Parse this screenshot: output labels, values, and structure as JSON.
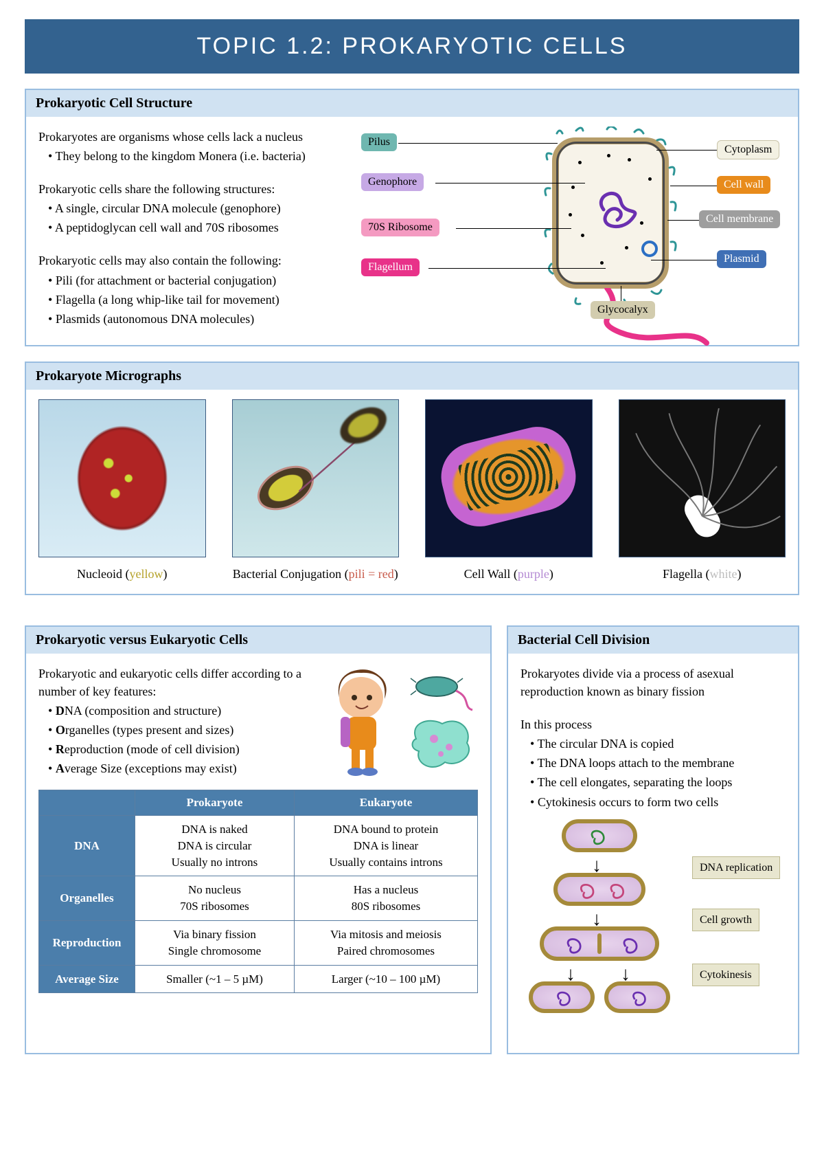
{
  "page_title": "TOPIC 1.2:  PROKARYOTIC CELLS",
  "section1": {
    "heading": "Prokaryotic Cell Structure",
    "intro": "Prokaryotes are organisms whose cells lack a nucleus",
    "intro_items": [
      "They belong to the kingdom Monera (i.e. bacteria)"
    ],
    "share_lead": "Prokaryotic cells share the following structures:",
    "share_items": [
      "A single, circular DNA molecule (genophore)",
      "A peptidoglycan cell wall and 70S ribosomes"
    ],
    "may_lead": "Prokaryotic cells may also contain the following:",
    "may_items": [
      "Pili  (for attachment or bacterial conjugation)",
      "Flagella  (a long whip-like tail for movement)",
      "Plasmids  (autonomous DNA molecules)"
    ],
    "labels": {
      "pilus": {
        "text": "Pilus",
        "bg": "#6fb7b0",
        "fg": "#000"
      },
      "genophore": {
        "text": "Genophore",
        "bg": "#c6a9e5",
        "fg": "#000"
      },
      "ribosome": {
        "text": "70S Ribosome",
        "bg": "#f49ac1",
        "fg": "#000"
      },
      "flagellum": {
        "text": "Flagellum",
        "bg": "#e83289",
        "fg": "#fff"
      },
      "cytoplasm": {
        "text": "Cytoplasm",
        "bg": "#f3f1e3",
        "fg": "#000"
      },
      "cellwall": {
        "text": "Cell wall",
        "bg": "#e88b1b",
        "fg": "#fff"
      },
      "membrane": {
        "text": "Cell membrane",
        "bg": "#9e9e9e",
        "fg": "#fff"
      },
      "plasmid": {
        "text": "Plasmid",
        "bg": "#3f6fb5",
        "fg": "#fff"
      },
      "glycocalyx": {
        "text": "Glycocalyx",
        "bg": "#d2ccae",
        "fg": "#000"
      }
    }
  },
  "section2": {
    "heading": "Prokaryote Micrographs",
    "caps": [
      {
        "pre": "Nucleoid (",
        "word": "yellow",
        "post": ")",
        "color": "#b5a22a"
      },
      {
        "pre": "Bacterial Conjugation (",
        "word": "pili = red",
        "post": ")",
        "color": "#c85a4a"
      },
      {
        "pre": "Cell Wall (",
        "word": "purple",
        "post": ")",
        "color": "#b48ad3"
      },
      {
        "pre": "Flagella (",
        "word": "white",
        "post": ")",
        "color": "#bcbcbc"
      }
    ]
  },
  "section3": {
    "heading": "Prokaryotic versus Eukaryotic Cells",
    "lead": "Prokaryotic and eukaryotic cells differ according to a number of key features:",
    "items": [
      {
        "b": "D",
        "rest": "NA  (composition and structure)"
      },
      {
        "b": "O",
        "rest": "rganelles  (types present and sizes)"
      },
      {
        "b": "R",
        "rest": "eproduction  (mode of cell division)"
      },
      {
        "b": "A",
        "rest": "verage Size  (exceptions may exist)"
      }
    ],
    "table": {
      "cols": [
        "",
        "Prokaryote",
        "Eukaryote"
      ],
      "rows": [
        {
          "h": "DNA",
          "p": "DNA is naked\nDNA is circular\nUsually no introns",
          "e": "DNA bound to protein\nDNA is linear\nUsually contains introns"
        },
        {
          "h": "Organelles",
          "p": "No nucleus\n70S ribosomes",
          "e": "Has a nucleus\n80S ribosomes"
        },
        {
          "h": "Reproduction",
          "p": "Via binary fission\nSingle chromosome",
          "e": "Via mitosis and meiosis\nPaired chromosomes"
        },
        {
          "h": "Average Size",
          "p": "Smaller (~1 – 5 µM)",
          "e": "Larger (~10 – 100 µM)"
        }
      ]
    }
  },
  "section4": {
    "heading": "Bacterial Cell Division",
    "lead": "Prokaryotes divide via a process of asexual reproduction known as binary fission",
    "sub": "In this process",
    "items": [
      "The circular DNA is copied",
      "The DNA loops attach to the membrane",
      "The cell elongates, separating the loops",
      "Cytokinesis occurs to form two cells"
    ],
    "stages": [
      "DNA replication",
      "Cell growth",
      "Cytokinesis"
    ]
  },
  "colors": {
    "banner": "#33628f",
    "panel_border": "#99bde0",
    "panel_head": "#d0e2f2",
    "table_header": "#4b7eab"
  }
}
